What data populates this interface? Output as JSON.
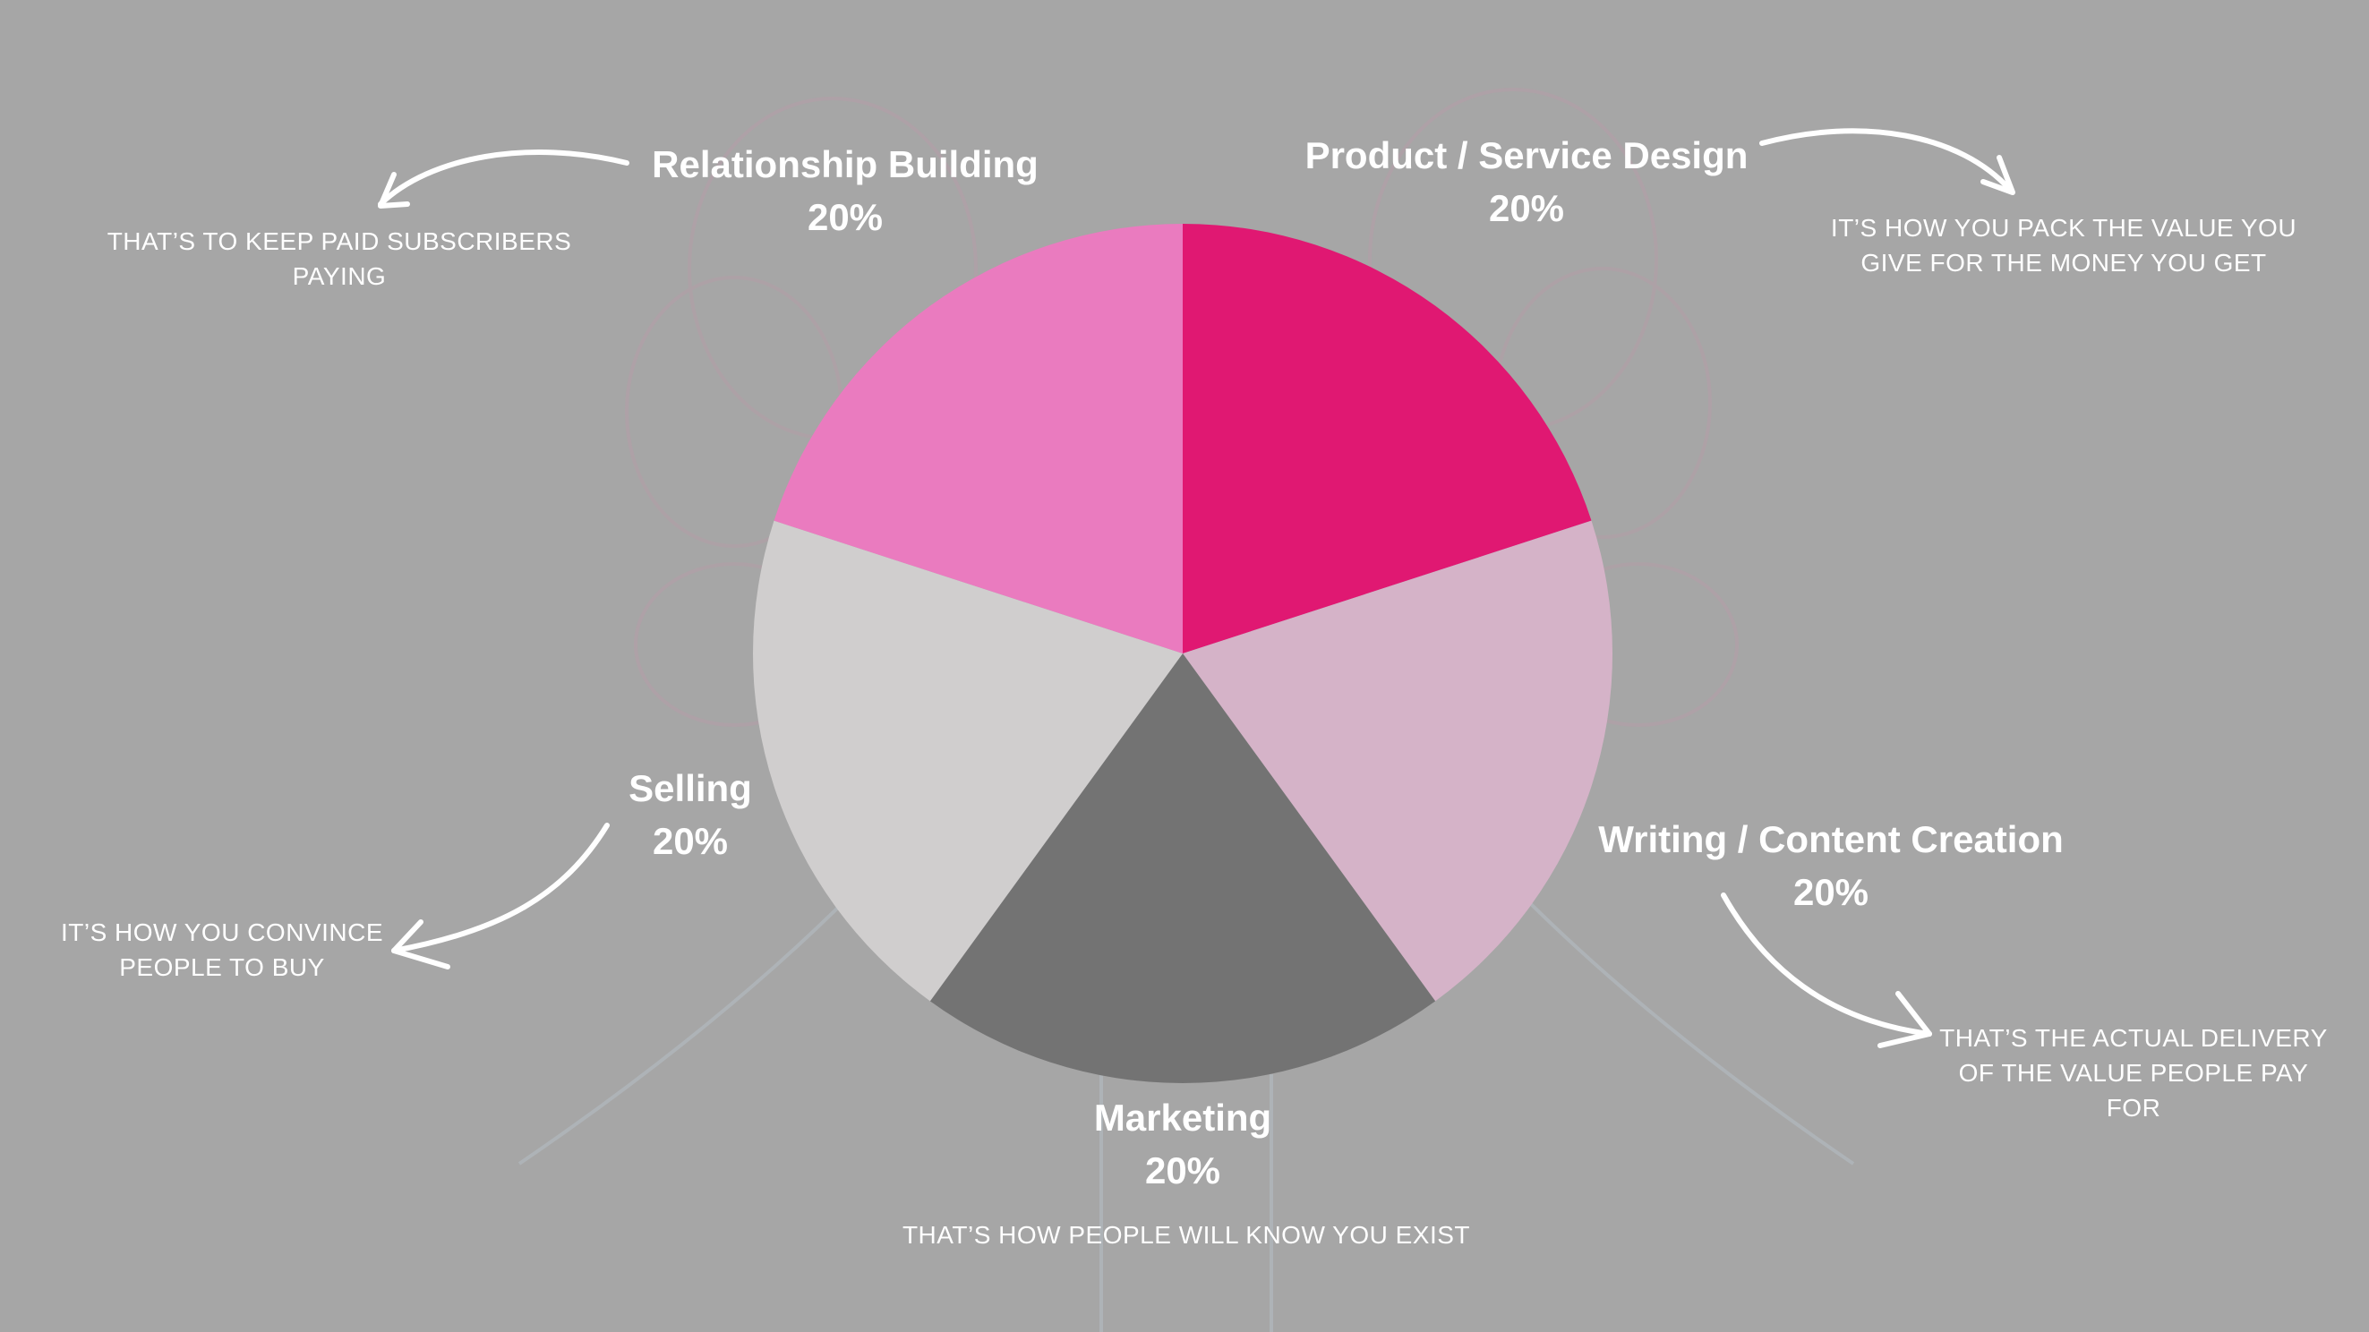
{
  "chart_data": {
    "type": "pie",
    "slices": [
      {
        "name": "Product / Service Design",
        "value": 20,
        "value_label": "20%",
        "color": "#e01872",
        "description": "IT’S HOW YOU PACK THE VALUE YOU GIVE FOR THE MONEY YOU GET"
      },
      {
        "name": "Writing / Content Creation",
        "value": 20,
        "value_label": "20%",
        "color": "#d5b3c8",
        "description": "THAT’S THE ACTUAL DELIVERY OF THE VALUE PEOPLE PAY FOR"
      },
      {
        "name": "Marketing",
        "value": 20,
        "value_label": "20%",
        "color": "#737373",
        "description": "THAT’S HOW PEOPLE WILL KNOW YOU EXIST"
      },
      {
        "name": "Selling",
        "value": 20,
        "value_label": "20%",
        "color": "#d0cece",
        "description": "IT’S HOW YOU CONVINCE PEOPLE TO BUY"
      },
      {
        "name": "Relationship Building",
        "value": 20,
        "value_label": "20%",
        "color": "#ea7bbf",
        "description": "THAT’S TO KEEP PAID SUBSCRIBERS PAYING"
      }
    ],
    "start_angle_deg": 0,
    "direction": "clockwise"
  },
  "colors": {
    "background": "#a6a6a6",
    "text": "#ffffff",
    "arrows": "#ffffff"
  }
}
